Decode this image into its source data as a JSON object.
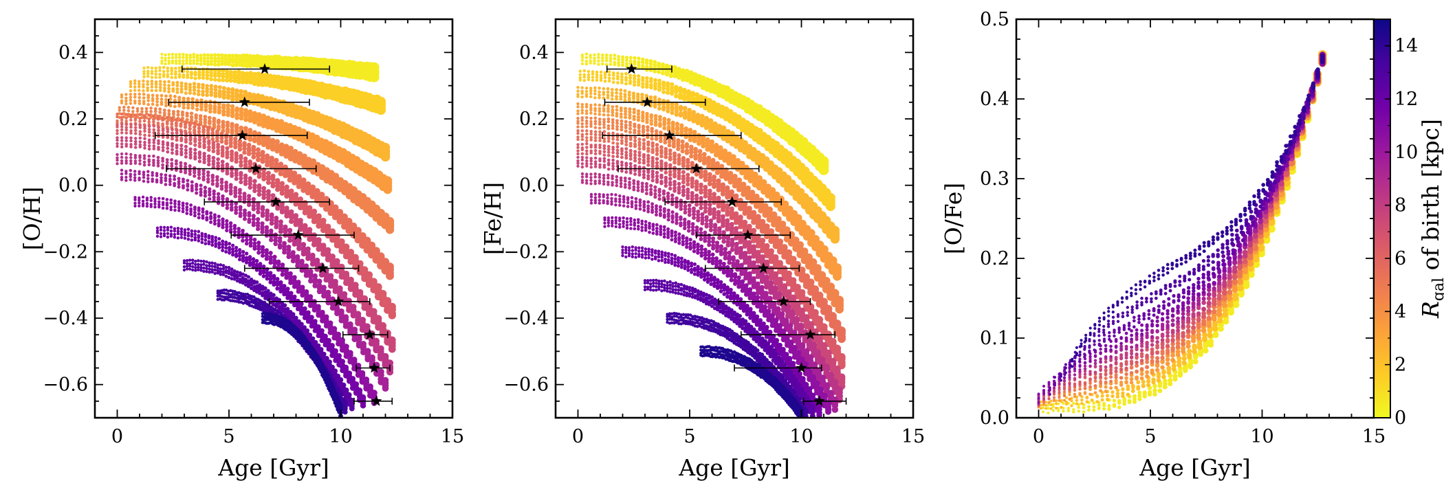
{
  "chart_data": [
    {
      "type": "scatter",
      "panel": "left",
      "xlabel": "Age [Gyr]",
      "ylabel": "[O/H]",
      "xlim": [
        -1,
        15
      ],
      "ylim": [
        -0.7,
        0.5
      ],
      "xticks": [
        0,
        5,
        10,
        15
      ],
      "yticks": [
        -0.6,
        -0.4,
        -0.2,
        0.0,
        0.2,
        0.4
      ],
      "ytick_labels": [
        "−0.6",
        "−0.4",
        "−0.2",
        "0.0",
        "0.2",
        "0.4"
      ],
      "color_by": "Rgal of birth [kpc]",
      "tracks": [
        {
          "r": 0.5,
          "x": [
            2.0,
            11.5
          ],
          "y": [
            0.38,
            0.34
          ]
        },
        {
          "r": 1.5,
          "x": [
            1.2,
            11.8
          ],
          "y": [
            0.34,
            0.24
          ]
        },
        {
          "r": 2.5,
          "x": [
            0.6,
            12.0
          ],
          "y": [
            0.3,
            0.1
          ]
        },
        {
          "r": 3.5,
          "x": [
            0.2,
            12.1
          ],
          "y": [
            0.26,
            0.0
          ]
        },
        {
          "r": 4.5,
          "x": [
            0.1,
            12.2
          ],
          "y": [
            0.22,
            -0.12
          ]
        },
        {
          "r": 5.5,
          "x": [
            0.0,
            12.2
          ],
          "y": [
            0.2,
            -0.26
          ]
        },
        {
          "r": 6.5,
          "x": [
            0.0,
            12.3
          ],
          "y": [
            0.17,
            -0.38
          ]
        },
        {
          "r": 7.5,
          "x": [
            0.0,
            12.3
          ],
          "y": [
            0.13,
            -0.48
          ]
        },
        {
          "r": 8.5,
          "x": [
            0.0,
            12.2
          ],
          "y": [
            0.08,
            -0.55
          ]
        },
        {
          "r": 9.5,
          "x": [
            0.2,
            12.0
          ],
          "y": [
            0.03,
            -0.6
          ]
        },
        {
          "r": 10.5,
          "x": [
            0.8,
            11.5
          ],
          "y": [
            -0.05,
            -0.64
          ]
        },
        {
          "r": 11.5,
          "x": [
            1.8,
            11.0
          ],
          "y": [
            -0.14,
            -0.65
          ]
        },
        {
          "r": 12.5,
          "x": [
            3.0,
            10.5
          ],
          "y": [
            -0.24,
            -0.66
          ]
        },
        {
          "r": 13.5,
          "x": [
            4.5,
            10.2
          ],
          "y": [
            -0.33,
            -0.67
          ]
        },
        {
          "r": 14.5,
          "x": [
            6.5,
            10.0
          ],
          "y": [
            -0.4,
            -0.68
          ]
        }
      ],
      "errorbars": [
        {
          "x": 6.6,
          "xlow": 2.9,
          "xhigh": 9.5,
          "y": 0.35
        },
        {
          "x": 5.7,
          "xlow": 2.3,
          "xhigh": 8.6,
          "y": 0.25
        },
        {
          "x": 5.6,
          "xlow": 1.7,
          "xhigh": 8.5,
          "y": 0.15
        },
        {
          "x": 6.2,
          "xlow": 2.2,
          "xhigh": 8.9,
          "y": 0.05
        },
        {
          "x": 7.1,
          "xlow": 3.9,
          "xhigh": 9.5,
          "y": -0.05
        },
        {
          "x": 8.1,
          "xlow": 5.1,
          "xhigh": 10.6,
          "y": -0.15
        },
        {
          "x": 9.2,
          "xlow": 5.7,
          "xhigh": 10.8,
          "y": -0.25
        },
        {
          "x": 9.9,
          "xlow": 6.8,
          "xhigh": 11.3,
          "y": -0.35
        },
        {
          "x": 11.3,
          "xlow": 10.1,
          "xhigh": 12.1,
          "y": -0.45
        },
        {
          "x": 11.5,
          "xlow": 10.7,
          "xhigh": 12.2,
          "y": -0.55
        },
        {
          "x": 11.6,
          "xlow": 10.6,
          "xhigh": 12.3,
          "y": -0.65
        }
      ]
    },
    {
      "type": "scatter",
      "panel": "middle",
      "xlabel": "Age [Gyr]",
      "ylabel": "[Fe/H]",
      "xlim": [
        -1,
        15
      ],
      "ylim": [
        -0.7,
        0.5
      ],
      "xticks": [
        0,
        5,
        10,
        15
      ],
      "yticks": [
        -0.6,
        -0.4,
        -0.2,
        0.0,
        0.2,
        0.4
      ],
      "ytick_labels": [
        "−0.6",
        "−0.4",
        "−0.2",
        "0.0",
        "0.2",
        "0.4"
      ],
      "color_by": "Rgal of birth [kpc]",
      "tracks": [
        {
          "r": 0.5,
          "x": [
            0.2,
            11.0
          ],
          "y": [
            0.38,
            0.06
          ]
        },
        {
          "r": 1.5,
          "x": [
            0.1,
            11.3
          ],
          "y": [
            0.33,
            -0.05
          ]
        },
        {
          "r": 2.5,
          "x": [
            0.0,
            11.5
          ],
          "y": [
            0.28,
            -0.15
          ]
        },
        {
          "r": 3.5,
          "x": [
            0.0,
            11.6
          ],
          "y": [
            0.23,
            -0.26
          ]
        },
        {
          "r": 4.5,
          "x": [
            0.0,
            11.7
          ],
          "y": [
            0.19,
            -0.36
          ]
        },
        {
          "r": 5.5,
          "x": [
            0.0,
            11.8
          ],
          "y": [
            0.15,
            -0.45
          ]
        },
        {
          "r": 6.5,
          "x": [
            0.0,
            11.8
          ],
          "y": [
            0.11,
            -0.53
          ]
        },
        {
          "r": 7.5,
          "x": [
            0.0,
            11.8
          ],
          "y": [
            0.07,
            -0.59
          ]
        },
        {
          "r": 8.5,
          "x": [
            0.2,
            11.7
          ],
          "y": [
            0.02,
            -0.63
          ]
        },
        {
          "r": 9.5,
          "x": [
            0.6,
            11.5
          ],
          "y": [
            -0.04,
            -0.66
          ]
        },
        {
          "r": 10.5,
          "x": [
            1.2,
            11.2
          ],
          "y": [
            -0.11,
            -0.67
          ]
        },
        {
          "r": 11.5,
          "x": [
            2.0,
            10.8
          ],
          "y": [
            -0.2,
            -0.68
          ]
        },
        {
          "r": 12.5,
          "x": [
            3.0,
            10.5
          ],
          "y": [
            -0.3,
            -0.68
          ]
        },
        {
          "r": 13.5,
          "x": [
            4.0,
            10.2
          ],
          "y": [
            -0.4,
            -0.69
          ]
        },
        {
          "r": 14.5,
          "x": [
            5.5,
            10.0
          ],
          "y": [
            -0.5,
            -0.69
          ]
        }
      ],
      "errorbars": [
        {
          "x": 2.4,
          "xlow": 1.3,
          "xhigh": 4.2,
          "y": 0.35
        },
        {
          "x": 3.1,
          "xlow": 1.2,
          "xhigh": 5.7,
          "y": 0.25
        },
        {
          "x": 4.1,
          "xlow": 1.1,
          "xhigh": 7.3,
          "y": 0.15
        },
        {
          "x": 5.3,
          "xlow": 1.8,
          "xhigh": 8.1,
          "y": 0.05
        },
        {
          "x": 6.9,
          "xlow": 3.9,
          "xhigh": 9.1,
          "y": -0.05
        },
        {
          "x": 7.6,
          "xlow": 5.3,
          "xhigh": 9.5,
          "y": -0.15
        },
        {
          "x": 8.3,
          "xlow": 5.7,
          "xhigh": 9.9,
          "y": -0.25
        },
        {
          "x": 9.2,
          "xlow": 6.3,
          "xhigh": 10.4,
          "y": -0.35
        },
        {
          "x": 10.4,
          "xlow": 7.3,
          "xhigh": 11.5,
          "y": -0.45
        },
        {
          "x": 10.0,
          "xlow": 7.0,
          "xhigh": 10.9,
          "y": -0.55
        },
        {
          "x": 10.8,
          "xlow": 10.1,
          "xhigh": 12.0,
          "y": -0.65
        }
      ]
    },
    {
      "type": "scatter",
      "panel": "right",
      "xlabel": "Age [Gyr]",
      "ylabel": "[O/Fe]",
      "xlim": [
        -1,
        15
      ],
      "ylim": [
        0.0,
        0.5
      ],
      "xticks": [
        0,
        5,
        10,
        15
      ],
      "yticks": [
        0.0,
        0.1,
        0.2,
        0.3,
        0.4,
        0.5
      ],
      "ytick_labels": [
        "0.0",
        "0.1",
        "0.2",
        "0.3",
        "0.4",
        "0.5"
      ],
      "color_by": "Rgal of birth [kpc]",
      "curve_endpoint": {
        "x": 12.7,
        "y": 0.45
      },
      "tracks": [
        {
          "r": 0.5,
          "x0": 0.2,
          "y0": 0.012,
          "amp": 0.0
        },
        {
          "r": 2.0,
          "x0": 0.1,
          "y0": 0.015,
          "amp": 0.01
        },
        {
          "r": 3.5,
          "x0": 0.0,
          "y0": 0.018,
          "amp": 0.02
        },
        {
          "r": 5.0,
          "x0": 0.0,
          "y0": 0.02,
          "amp": 0.03
        },
        {
          "r": 6.5,
          "x0": 0.0,
          "y0": 0.02,
          "amp": 0.04
        },
        {
          "r": 8.0,
          "x0": 0.0,
          "y0": 0.022,
          "amp": 0.05
        },
        {
          "r": 9.5,
          "x0": 0.0,
          "y0": 0.024,
          "amp": 0.06
        },
        {
          "r": 11.0,
          "x0": 0.0,
          "y0": 0.025,
          "amp": 0.07
        },
        {
          "r": 12.0,
          "x0": 0.5,
          "y0": 0.035,
          "amp": 0.08
        },
        {
          "r": 13.0,
          "x0": 1.0,
          "y0": 0.05,
          "amp": 0.09
        },
        {
          "r": 14.0,
          "x0": 1.5,
          "y0": 0.07,
          "amp": 0.1
        }
      ]
    }
  ],
  "colorbar": {
    "label_main": "R",
    "label_sub": "gal",
    "label_rest": " of birth [kpc]",
    "range": [
      0,
      15
    ],
    "ticks": [
      0,
      2,
      4,
      6,
      8,
      10,
      12,
      14
    ],
    "colormap": "plasma_r",
    "colors": [
      "#f0f921",
      "#fdca26",
      "#fb9f3a",
      "#ed7953",
      "#d8576b",
      "#bd3786",
      "#9c179e",
      "#7201a8",
      "#46039f",
      "#0d0887"
    ]
  },
  "marker_color": "#000000"
}
